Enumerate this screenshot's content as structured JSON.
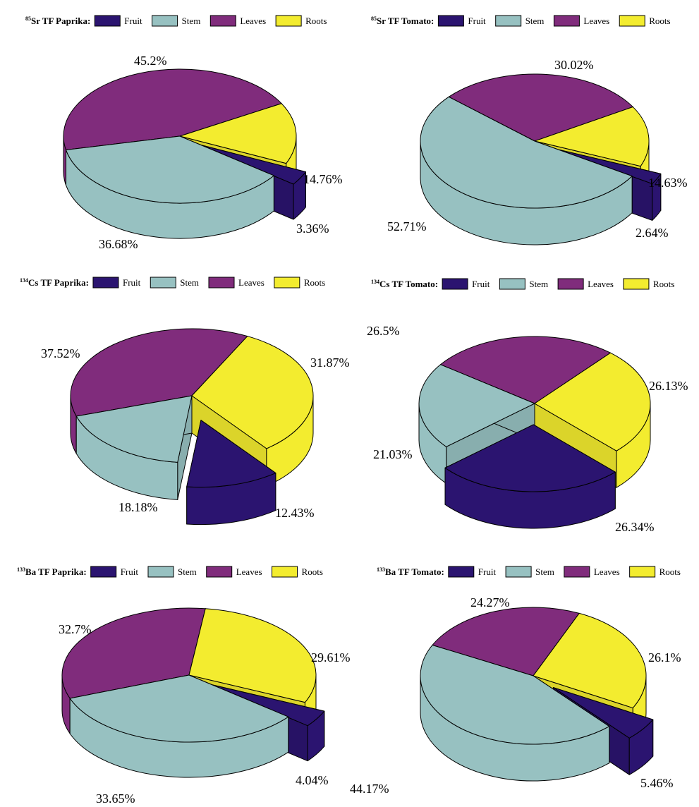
{
  "colors": {
    "Fruit": "#2b1470",
    "Stem": "#97c1c1",
    "Leaves": "#802c7c",
    "Roots": "#f3ec2f"
  },
  "legend_labels": [
    "Fruit",
    "Stem",
    "Leaves",
    "Roots"
  ],
  "chart_data": [
    {
      "type": "pie",
      "title_sup": "85",
      "title": "Sr TF Paprika:",
      "categories": [
        "Fruit",
        "Stem",
        "Leaves",
        "Roots"
      ],
      "values": [
        3.36,
        36.68,
        45.2,
        14.76
      ],
      "labels": [
        "3.36%",
        "36.68%",
        "45.2%",
        "14.76%"
      ],
      "exploded": [
        "Fruit"
      ]
    },
    {
      "type": "pie",
      "title_sup": "85",
      "title": "Sr TF Tomato:",
      "categories": [
        "Fruit",
        "Stem",
        "Leaves",
        "Roots"
      ],
      "values": [
        2.64,
        52.71,
        30.02,
        14.63
      ],
      "labels": [
        "2.64%",
        "52.71%",
        "30.02%",
        "14.63%"
      ],
      "exploded": [
        "Fruit"
      ]
    },
    {
      "type": "pie",
      "title_sup": "134",
      "title": "Cs TF Paprika:",
      "categories": [
        "Fruit",
        "Stem",
        "Leaves",
        "Roots"
      ],
      "values": [
        12.43,
        18.18,
        37.52,
        31.87
      ],
      "labels": [
        "12.43%",
        "18.18%",
        "37.52%",
        "31.87%"
      ],
      "exploded": [
        "Fruit"
      ]
    },
    {
      "type": "pie",
      "title_sup": "134",
      "title": "Cs TF Tomato:",
      "categories": [
        "Fruit",
        "Stem",
        "Leaves",
        "Roots"
      ],
      "values": [
        26.34,
        21.03,
        26.5,
        26.13
      ],
      "labels": [
        "26.34%",
        "21.03%",
        "26.5%",
        "26.13%"
      ],
      "exploded": [
        "Fruit"
      ]
    },
    {
      "type": "pie",
      "title_sup": "133",
      "title": "Ba TF Paprika:",
      "categories": [
        "Fruit",
        "Stem",
        "Leaves",
        "Roots"
      ],
      "values": [
        4.04,
        33.65,
        32.7,
        29.61
      ],
      "labels": [
        "4.04%",
        "33.65%",
        "32.7%",
        "29.61%"
      ],
      "exploded": [
        "Fruit"
      ]
    },
    {
      "type": "pie",
      "title_sup": "133",
      "title": "Ba TF Tomato:",
      "categories": [
        "Fruit",
        "Stem",
        "Leaves",
        "Roots"
      ],
      "values": [
        5.46,
        44.17,
        24.27,
        26.1
      ],
      "labels": [
        "5.46%",
        "44.17%",
        "24.27%",
        "26.1%"
      ],
      "exploded": [
        "Fruit"
      ]
    }
  ]
}
